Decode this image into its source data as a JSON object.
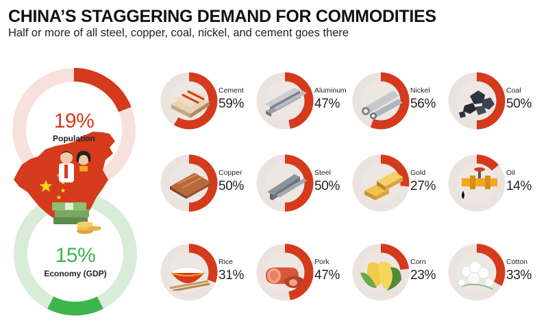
{
  "header": {
    "title": "CHINA’S STAGGERING DEMAND FOR COMMODITIES",
    "subtitle": "Half or more of all steel, copper, coal, nickel, and cement goes there"
  },
  "colors": {
    "red": "#d53a1c",
    "red_light": "#f7e1dc",
    "green": "#3cb54a",
    "green_light": "#d8ecd8",
    "ring_bg": "#ece3df",
    "tile_disc": "#ede7e3"
  },
  "left": {
    "population": {
      "value": "19%",
      "fraction": 0.19,
      "label": "Population"
    },
    "economy": {
      "value": "15%",
      "fraction": 0.15,
      "label": "Economy (GDP)"
    }
  },
  "chart_data": {
    "type": "pie",
    "title": "CHINA’S STAGGERING DEMAND FOR COMMODITIES",
    "subtitle": "Half or more of all steel, copper, coal, nickel, and cement goes there",
    "categories": [
      "Cement",
      "Aluminum",
      "Nickel",
      "Coal",
      "Copper",
      "Steel",
      "Gold",
      "Oil",
      "Rice",
      "Pork",
      "Corn",
      "Cotton"
    ],
    "values": [
      59,
      47,
      56,
      50,
      50,
      50,
      27,
      14,
      31,
      47,
      23,
      33
    ],
    "labels": [
      "59%",
      "47%",
      "56%",
      "50%",
      "50%",
      "50%",
      "27%",
      "14%",
      "31%",
      "47%",
      "23%",
      "33%"
    ],
    "icons": [
      "cement-bags-icon",
      "aluminum-bars-icon",
      "nickel-pipes-icon",
      "coal-lumps-icon",
      "copper-sheets-icon",
      "steel-rails-icon",
      "gold-bars-icon",
      "oil-pipe-icon",
      "rice-bowl-icon",
      "pork-sausage-icon",
      "corn-cobs-icon",
      "cotton-bolls-icon"
    ]
  }
}
